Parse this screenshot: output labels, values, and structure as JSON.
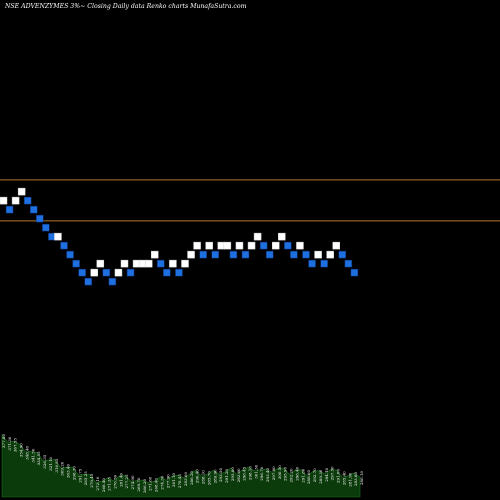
{
  "header": {
    "title": "NSE ADVENZYMES 3%~ Closing Daily data Renko charts MunafaSutra.com"
  },
  "colors": {
    "background": "#000000",
    "up_brick": "#ffffff",
    "down_brick": "#1e6fe0",
    "brick_stroke": "#0a2a66",
    "reference_line": "#b8742a",
    "volume_area": "#0b3a0b",
    "volume_edge": "#1f6e1f"
  },
  "chart_data": {
    "type": "renko",
    "title": "NSE ADVENZYMES 3%~ Closing Daily data Renko charts MunafaSutra.com",
    "brick_size_percent": 3,
    "reference_lines": [
      {
        "value": 353.4
      },
      {
        "value": 317.0
      }
    ],
    "bricks": [
      {
        "value": 335,
        "dir": "up"
      },
      {
        "value": 327,
        "dir": "down"
      },
      {
        "value": 335,
        "dir": "up"
      },
      {
        "value": 343,
        "dir": "up"
      },
      {
        "value": 335,
        "dir": "down"
      },
      {
        "value": 327,
        "dir": "down"
      },
      {
        "value": 319,
        "dir": "down"
      },
      {
        "value": 311,
        "dir": "down"
      },
      {
        "value": 303,
        "dir": "down"
      },
      {
        "value": 303,
        "dir": "up"
      },
      {
        "value": 295,
        "dir": "down"
      },
      {
        "value": 287,
        "dir": "down"
      },
      {
        "value": 279,
        "dir": "down"
      },
      {
        "value": 271,
        "dir": "down"
      },
      {
        "value": 263,
        "dir": "down"
      },
      {
        "value": 271,
        "dir": "up"
      },
      {
        "value": 279,
        "dir": "up"
      },
      {
        "value": 271,
        "dir": "down"
      },
      {
        "value": 263,
        "dir": "down"
      },
      {
        "value": 271,
        "dir": "up"
      },
      {
        "value": 279,
        "dir": "up"
      },
      {
        "value": 271,
        "dir": "down"
      },
      {
        "value": 279,
        "dir": "up"
      },
      {
        "value": 279,
        "dir": "up"
      },
      {
        "value": 279,
        "dir": "up"
      },
      {
        "value": 287,
        "dir": "up"
      },
      {
        "value": 279,
        "dir": "down"
      },
      {
        "value": 271,
        "dir": "down"
      },
      {
        "value": 279,
        "dir": "up"
      },
      {
        "value": 271,
        "dir": "down"
      },
      {
        "value": 279,
        "dir": "up"
      },
      {
        "value": 287,
        "dir": "up"
      },
      {
        "value": 295,
        "dir": "up"
      },
      {
        "value": 287,
        "dir": "down"
      },
      {
        "value": 295,
        "dir": "up"
      },
      {
        "value": 287,
        "dir": "down"
      },
      {
        "value": 295,
        "dir": "up"
      },
      {
        "value": 295,
        "dir": "up"
      },
      {
        "value": 287,
        "dir": "down"
      },
      {
        "value": 295,
        "dir": "up"
      },
      {
        "value": 287,
        "dir": "down"
      },
      {
        "value": 295,
        "dir": "up"
      },
      {
        "value": 303,
        "dir": "up"
      },
      {
        "value": 295,
        "dir": "down"
      },
      {
        "value": 287,
        "dir": "down"
      },
      {
        "value": 295,
        "dir": "up"
      },
      {
        "value": 303,
        "dir": "up"
      },
      {
        "value": 295,
        "dir": "down"
      },
      {
        "value": 287,
        "dir": "down"
      },
      {
        "value": 295,
        "dir": "up"
      },
      {
        "value": 287,
        "dir": "down"
      },
      {
        "value": 279,
        "dir": "down"
      },
      {
        "value": 287,
        "dir": "up"
      },
      {
        "value": 279,
        "dir": "down"
      },
      {
        "value": 287,
        "dir": "up"
      },
      {
        "value": 295,
        "dir": "up"
      },
      {
        "value": 287,
        "dir": "down"
      },
      {
        "value": 279,
        "dir": "down"
      },
      {
        "value": 271,
        "dir": "down"
      }
    ],
    "volume_labels": [
      "377.80",
      "371.30",
      "367.55",
      "354.90",
      "348.40",
      "341.50",
      "334.55",
      "326.35",
      "321.10",
      "316.85",
      "309.20",
      "303.40",
      "298.30",
      "291.75",
      "285.25",
      "279.45",
      "272.10",
      "268.40",
      "271.35",
      "276.50",
      "281.40",
      "277.25",
      "274.90",
      "269.70",
      "266.20",
      "271.60",
      "268.40",
      "274.30",
      "277.90",
      "281.10",
      "278.45",
      "283.60",
      "286.20",
      "290.40",
      "288.10",
      "285.70",
      "289.90",
      "293.50",
      "291.20",
      "295.80",
      "292.60",
      "296.45",
      "298.10",
      "301.30",
      "296.70",
      "293.40",
      "297.80",
      "300.50",
      "295.90",
      "292.20",
      "296.40",
      "291.80",
      "288.60",
      "292.70",
      "289.30",
      "294.10",
      "297.50",
      "291.00",
      "285.40",
      "281.90",
      "283.60",
      "286.10"
    ]
  }
}
